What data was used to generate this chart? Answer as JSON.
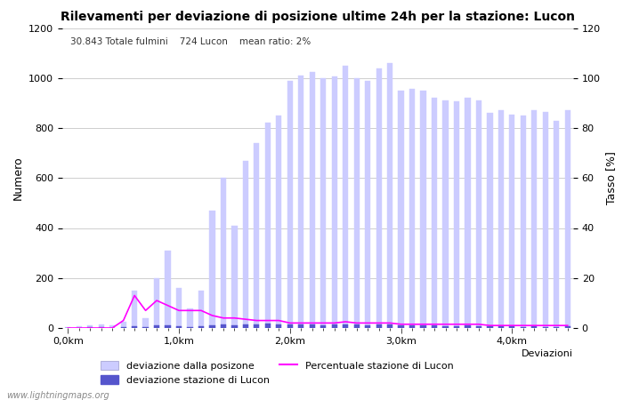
{
  "title": "Rilevamenti per deviazione di posizione ultime 24h per la stazione: Lucon",
  "subtitle": "30.843 Totale fulmini    724 Lucon    mean ratio: 2%",
  "xlabel": "Deviazioni",
  "ylabel_left": "Numero",
  "ylabel_right": "Tasso [%]",
  "watermark": "www.lightningmaps.org",
  "legend_labels": [
    "deviazione dalla posizone",
    "deviazione stazione di Lucon",
    "Percentuale stazione di Lucon"
  ],
  "x_tick_labels": [
    "0,0km",
    "1,0km",
    "2,0km",
    "3,0km",
    "4,0km"
  ],
  "x_tick_positions": [
    0,
    10,
    20,
    30,
    40
  ],
  "ylim_left": [
    0,
    1200
  ],
  "ylim_right": [
    0,
    120
  ],
  "yticks_left": [
    0,
    200,
    400,
    600,
    800,
    1000,
    1200
  ],
  "yticks_right": [
    0,
    20,
    40,
    60,
    80,
    100,
    120
  ],
  "bar_width": 0.5,
  "bar_color_light": "#ccccff",
  "bar_color_dark": "#5555cc",
  "line_color": "#ff00ff",
  "background_color": "#ffffff",
  "grid_color": "#bbbbbb",
  "total_bars": 46,
  "deviazione_dalla_posizone": [
    5,
    8,
    12,
    15,
    10,
    25,
    150,
    40,
    200,
    310,
    160,
    80,
    150,
    470,
    600,
    410,
    670,
    740,
    820,
    850,
    990,
    1010,
    1025,
    1000,
    1005,
    1050,
    1000,
    990,
    1040,
    1060,
    950,
    955,
    950,
    920,
    910,
    905,
    920,
    910,
    860,
    870,
    855,
    850,
    870,
    865,
    830,
    870
  ],
  "deviazione_stazione_di_lucon": [
    1,
    1,
    2,
    2,
    1,
    2,
    8,
    4,
    10,
    12,
    7,
    4,
    6,
    12,
    16,
    12,
    15,
    14,
    17,
    16,
    14,
    15,
    14,
    12,
    14,
    16,
    13,
    11,
    13,
    14,
    10,
    9,
    11,
    9,
    8,
    8,
    9,
    8,
    6,
    6,
    6,
    5,
    6,
    5,
    5,
    6
  ],
  "percentuale_stazione_di_lucon": [
    0,
    0,
    0,
    0,
    0,
    3,
    13,
    7,
    11,
    9,
    7,
    7,
    7,
    5,
    4,
    4,
    3.5,
    3,
    3,
    3,
    2,
    2,
    2,
    2,
    2,
    2.5,
    2,
    2,
    2,
    2,
    1.5,
    1.5,
    1.5,
    1.5,
    1.5,
    1.5,
    1.5,
    1.5,
    1,
    1,
    1,
    1,
    1,
    1,
    1,
    1
  ]
}
